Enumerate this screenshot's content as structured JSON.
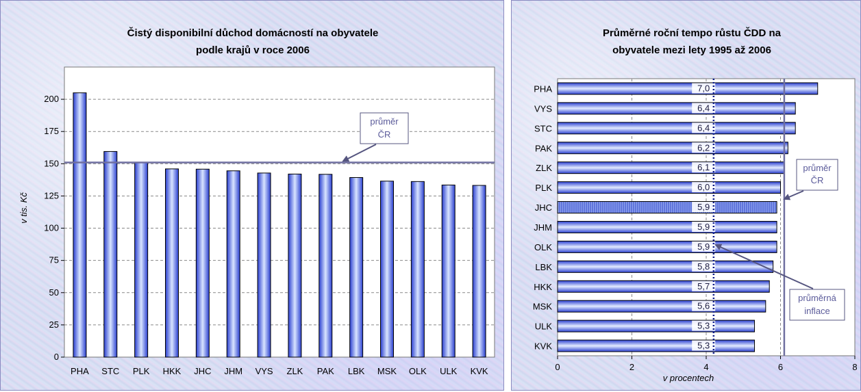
{
  "chart_data": [
    {
      "type": "bar",
      "title_lines": [
        "Čistý disponibilní důchod domácností na obyvatele",
        "podle krajů v roce 2006"
      ],
      "ylabel": "v tis. Kč",
      "categories": [
        "PHA",
        "STC",
        "PLK",
        "HKK",
        "JHC",
        "JHM",
        "VYS",
        "ZLK",
        "PAK",
        "LBK",
        "MSK",
        "OLK",
        "ULK",
        "KVK"
      ],
      "values": [
        205,
        159.5,
        151,
        146,
        145.8,
        144.5,
        142.8,
        142,
        141.8,
        139.3,
        136.5,
        136.2,
        133.5,
        133.2
      ],
      "ylim": [
        0,
        225
      ],
      "yticks": [
        "0",
        "25",
        "50",
        "75",
        "100",
        "125",
        "150",
        "175",
        "200"
      ],
      "reference_line": 151,
      "annotation": {
        "lines": [
          "průměr",
          "ČR"
        ]
      },
      "grid": true
    },
    {
      "type": "bar",
      "orientation": "horizontal",
      "title_lines": [
        "Průměrné roční tempo růstu ČDD na",
        "obyvatele mezi lety 1995 až 2006"
      ],
      "xlabel": "v procentech",
      "categories": [
        "PHA",
        "VYS",
        "STC",
        "PAK",
        "ZLK",
        "PLK",
        "JHC",
        "JHM",
        "OLK",
        "LBK",
        "HKK",
        "MSK",
        "ULK",
        "KVK"
      ],
      "values": [
        7.0,
        6.4,
        6.4,
        6.2,
        6.1,
        6.0,
        5.9,
        5.9,
        5.9,
        5.8,
        5.7,
        5.6,
        5.3,
        5.3
      ],
      "data_labels": [
        "7,0",
        "6,4",
        "6,4",
        "6,2",
        "6,1",
        "6,0",
        "5,9",
        "5,9",
        "5,9",
        "5,8",
        "5,7",
        "5,6",
        "5,3",
        "5,3"
      ],
      "xlim": [
        0,
        8
      ],
      "xticks": [
        "0",
        "2",
        "4",
        "6",
        "8"
      ],
      "average_line": 6.1,
      "inflation_line": 4.2,
      "annotations": [
        {
          "lines": [
            "průměr",
            "ČR"
          ]
        },
        {
          "lines": [
            "průměrná",
            "inflace"
          ]
        }
      ],
      "grid": true
    }
  ]
}
